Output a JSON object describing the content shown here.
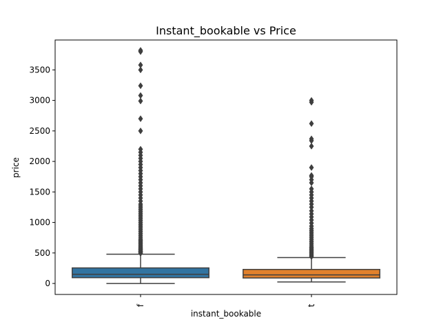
{
  "chart_data": {
    "type": "box",
    "title": "Instant_bookable vs Price",
    "xlabel": "instant_bookable",
    "ylabel": "price",
    "ylim": [
      -180,
      3990
    ],
    "yticks": [
      0,
      500,
      1000,
      1500,
      2000,
      2500,
      3000,
      3500
    ],
    "categories": [
      "f",
      "t"
    ],
    "colors": {
      "f": "#3274a1",
      "t": "#e1812c",
      "edge": "#3f3f3f"
    },
    "boxes": [
      {
        "category": "f",
        "whisker_low": 0,
        "q1": 95,
        "median": 150,
        "q3": 255,
        "whisker_high": 480,
        "outliers": [
          495,
          510,
          520,
          530,
          545,
          560,
          575,
          590,
          610,
          630,
          650,
          670,
          690,
          710,
          730,
          760,
          790,
          820,
          850,
          880,
          910,
          940,
          970,
          1000,
          1030,
          1060,
          1090,
          1120,
          1150,
          1180,
          1210,
          1240,
          1270,
          1300,
          1350,
          1400,
          1450,
          1500,
          1550,
          1600,
          1650,
          1700,
          1750,
          1800,
          1850,
          1900,
          1950,
          2000,
          2050,
          2100,
          2150,
          2200,
          2500,
          2700,
          2990,
          3080,
          3240,
          3500,
          3580,
          3800,
          3820
        ]
      },
      {
        "category": "t",
        "whisker_low": 25,
        "q1": 90,
        "median": 140,
        "q3": 230,
        "whisker_high": 425,
        "outliers": [
          440,
          460,
          480,
          500,
          520,
          540,
          560,
          580,
          600,
          630,
          660,
          690,
          720,
          750,
          780,
          810,
          840,
          870,
          900,
          940,
          990,
          1040,
          1090,
          1140,
          1190,
          1250,
          1300,
          1350,
          1400,
          1450,
          1500,
          1550,
          1650,
          1700,
          1750,
          1770,
          1900,
          2250,
          2340,
          2370,
          2620,
          2970,
          3000
        ]
      }
    ]
  }
}
